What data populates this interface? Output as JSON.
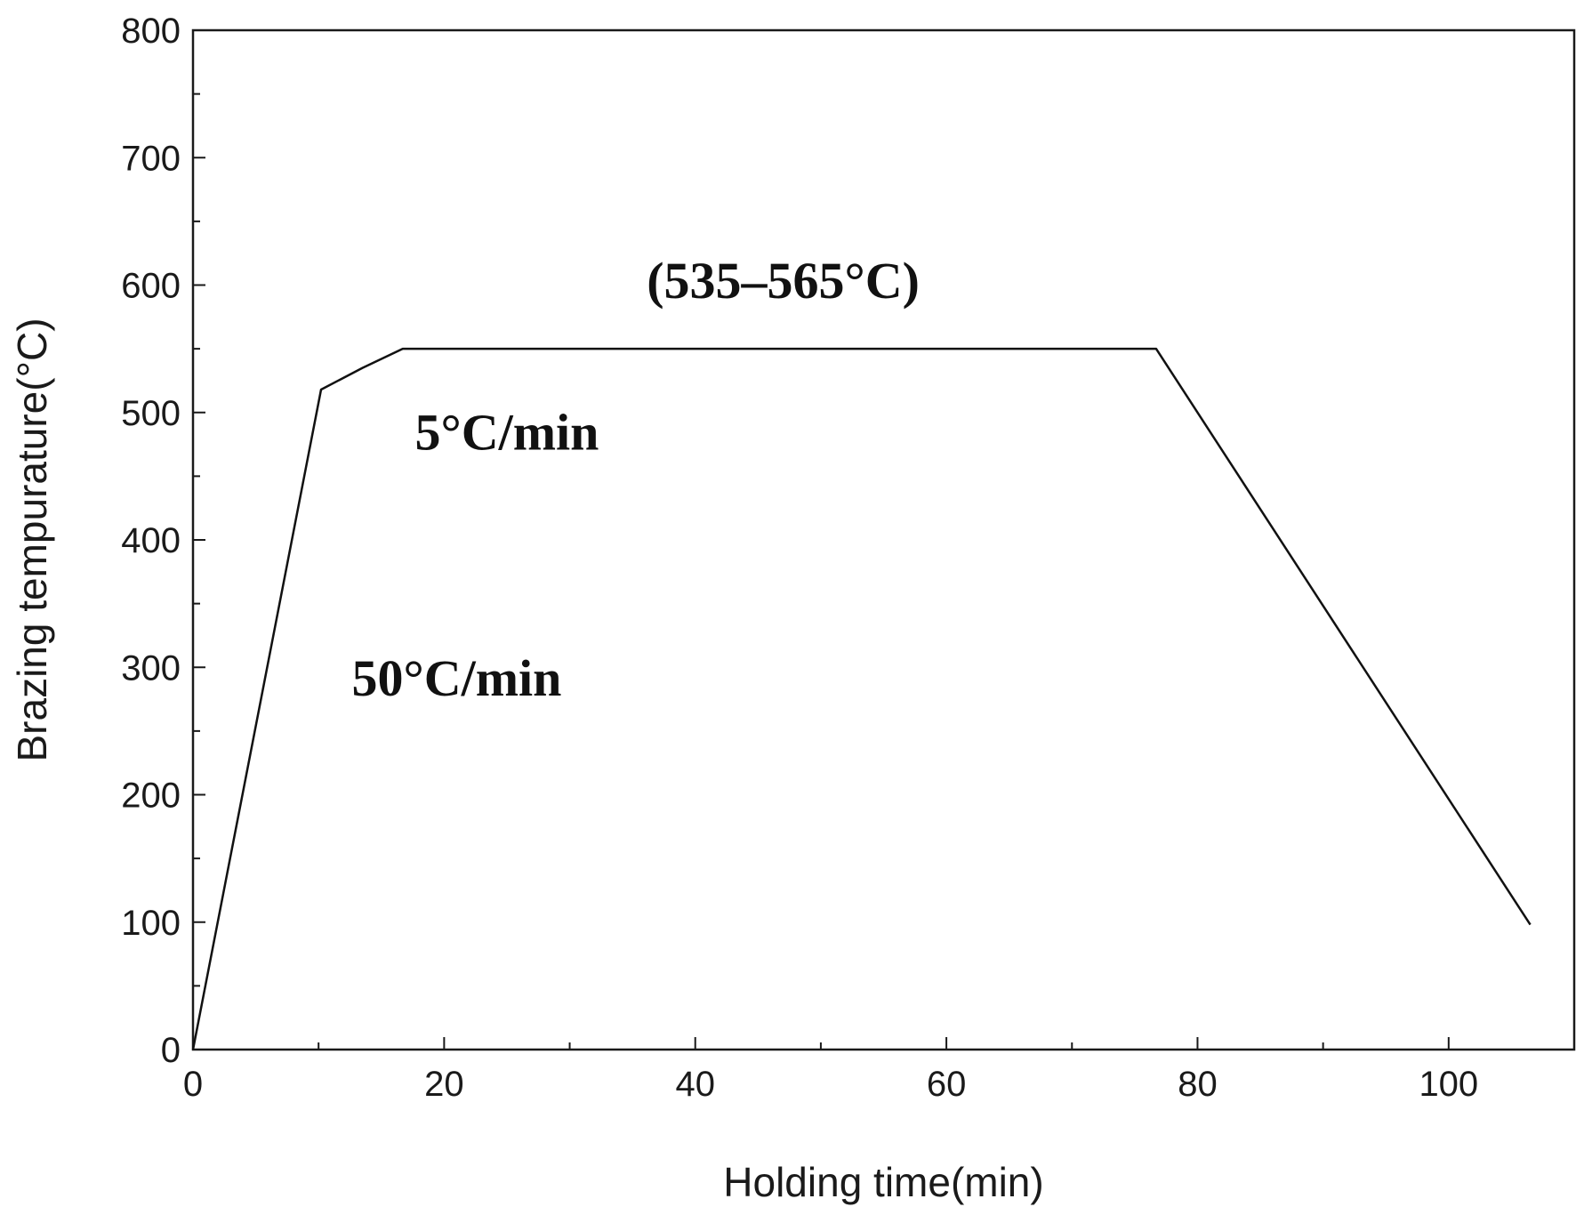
{
  "chart_data": {
    "type": "line",
    "title": "",
    "xlabel": "Holding time(min)",
    "ylabel": "Brazing tempurature(°C)",
    "xlim": [
      0,
      110
    ],
    "ylim": [
      0,
      800
    ],
    "x_ticks": [
      0,
      20,
      40,
      60,
      80,
      100
    ],
    "x_tick_labels": [
      "0",
      "20",
      "40",
      "60",
      "80",
      "100"
    ],
    "x_minor_ticks": [
      10,
      30,
      50,
      70,
      90
    ],
    "y_ticks": [
      0,
      100,
      200,
      300,
      400,
      500,
      600,
      700,
      800
    ],
    "y_tick_labels": [
      "0",
      "100",
      "200",
      "300",
      "400",
      "500",
      "600",
      "700",
      "800"
    ],
    "y_minor_ticks": [
      50,
      150,
      250,
      350,
      450,
      550,
      650,
      750
    ],
    "grid": false,
    "legend": "none",
    "series": [
      {
        "x": [
          0,
          10.2,
          13.5,
          16.7,
          76.7,
          106.5
        ],
        "y": [
          0,
          518,
          535,
          550,
          550,
          98
        ],
        "color": "#111111"
      }
    ],
    "annotations": [
      {
        "text": "(535–565°C)",
        "x": 47,
        "y": 590
      },
      {
        "text": "5°C/min",
        "x": 25,
        "y": 471
      },
      {
        "text": "50°C/min",
        "x": 21,
        "y": 278
      }
    ]
  }
}
